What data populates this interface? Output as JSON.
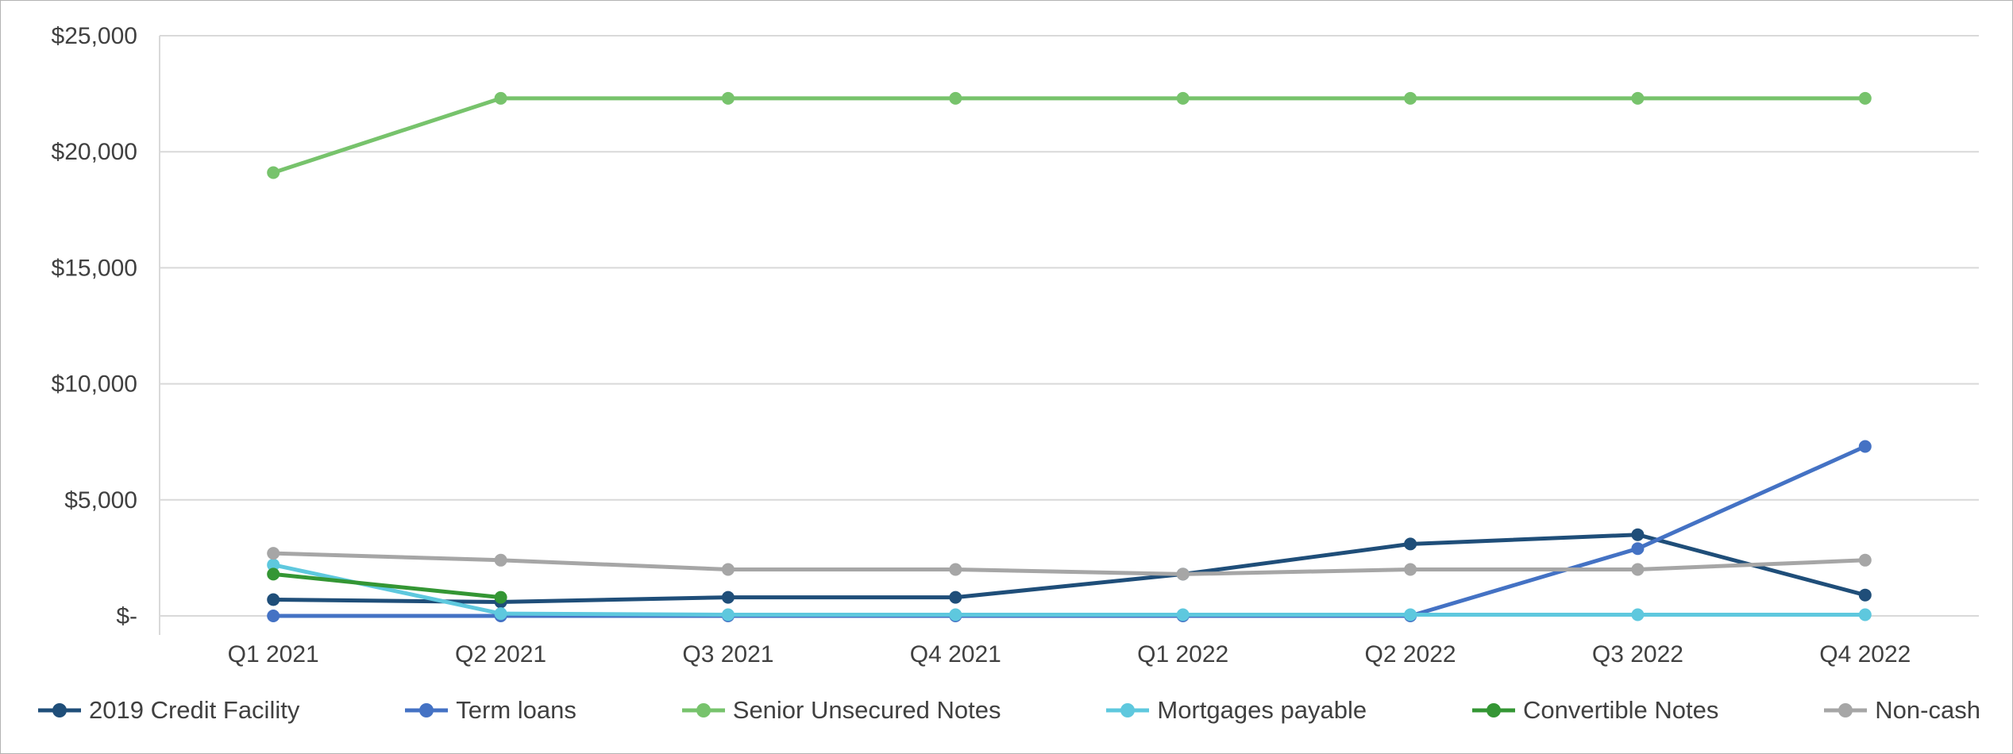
{
  "chart_data": {
    "type": "line",
    "categories": [
      "Q1 2021",
      "Q2 2021",
      "Q3 2021",
      "Q4 2021",
      "Q1 2022",
      "Q2 2022",
      "Q3 2022",
      "Q4 2022"
    ],
    "y_axis": {
      "min": 0,
      "max": 25000,
      "step": 5000,
      "ticks": [
        {
          "value": 25000,
          "label": "$25,000"
        },
        {
          "value": 20000,
          "label": "$20,000"
        },
        {
          "value": 15000,
          "label": "$15,000"
        },
        {
          "value": 10000,
          "label": "$10,000"
        },
        {
          "value": 5000,
          "label": "$5,000"
        },
        {
          "value": 0,
          "label": "$-"
        }
      ]
    },
    "grid": true,
    "legend_position": "bottom",
    "series": [
      {
        "name": "2019 Credit Facility",
        "color": "#1F4E79",
        "values": [
          700,
          600,
          800,
          800,
          1800,
          3100,
          3500,
          900
        ]
      },
      {
        "name": "Term loans",
        "color": "#4472C4",
        "values": [
          0,
          0,
          0,
          0,
          0,
          0,
          2900,
          7300
        ]
      },
      {
        "name": "Senior Unsecured Notes",
        "color": "#77C36C",
        "values": [
          19100,
          22300,
          22300,
          22300,
          22300,
          22300,
          22300,
          22300
        ]
      },
      {
        "name": "Mortgages payable",
        "color": "#5EC8DE",
        "values": [
          2200,
          100,
          50,
          50,
          50,
          50,
          50,
          50
        ]
      },
      {
        "name": "Convertible Notes",
        "color": "#349634",
        "values": [
          1800,
          800,
          null,
          null,
          null,
          null,
          null,
          null
        ]
      },
      {
        "name": "Non-cash",
        "color": "#A6A6A6",
        "values": [
          2700,
          2400,
          2000,
          2000,
          1800,
          2000,
          2000,
          2400
        ]
      }
    ],
    "colors": {
      "gridline": "#D9D9D9",
      "axis_line": "#D9D9D9",
      "axis_text": "#404040"
    }
  }
}
